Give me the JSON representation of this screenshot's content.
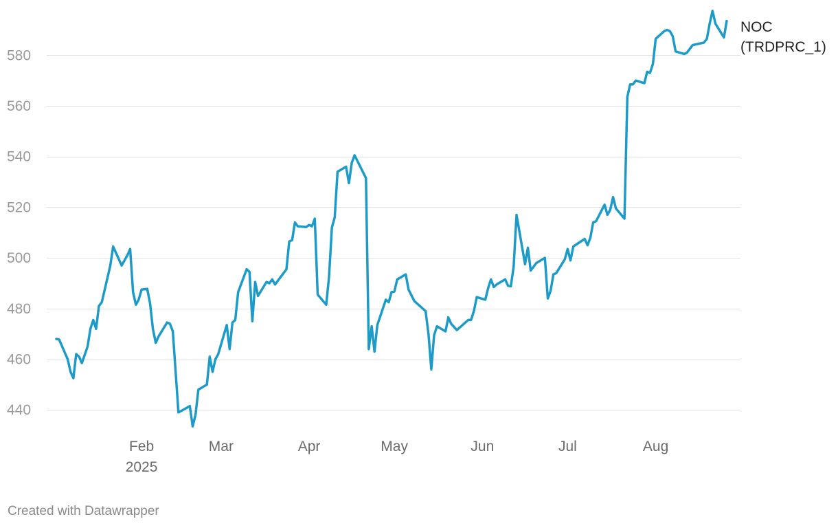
{
  "footer": "Created with Datawrapper",
  "chart_data": {
    "type": "line",
    "title": "",
    "xlabel": "",
    "ylabel": "",
    "ylim": [
      433,
      598
    ],
    "y_ticks": [
      440,
      460,
      480,
      500,
      520,
      540,
      560,
      580
    ],
    "x_range": [
      "2025-01-02",
      "2025-08-29"
    ],
    "x_ticks": [
      {
        "date": "2025-02-01",
        "label": "Feb",
        "sublabel": "2025"
      },
      {
        "date": "2025-03-01",
        "label": "Mar"
      },
      {
        "date": "2025-04-01",
        "label": "Apr"
      },
      {
        "date": "2025-05-01",
        "label": "May"
      },
      {
        "date": "2025-06-01",
        "label": "Jun"
      },
      {
        "date": "2025-07-01",
        "label": "Jul"
      },
      {
        "date": "2025-08-01",
        "label": "Aug"
      }
    ],
    "grid": true,
    "series": [
      {
        "name": "NOC (TRDPRC_1)",
        "label_lines": [
          "NOC",
          "(TRDPRC_1)"
        ],
        "color": "#1d9bc8",
        "points": [
          [
            "2025-01-02",
            468
          ],
          [
            "2025-01-03",
            467.8
          ],
          [
            "2025-01-06",
            460
          ],
          [
            "2025-01-07",
            455
          ],
          [
            "2025-01-08",
            452.5
          ],
          [
            "2025-01-09",
            462
          ],
          [
            "2025-01-10",
            461
          ],
          [
            "2025-01-11",
            458.5
          ],
          [
            "2025-01-13",
            465
          ],
          [
            "2025-01-14",
            472
          ],
          [
            "2025-01-15",
            475.5
          ],
          [
            "2025-01-16",
            472
          ],
          [
            "2025-01-17",
            481
          ],
          [
            "2025-01-18",
            482.5
          ],
          [
            "2025-01-21",
            497
          ],
          [
            "2025-01-22",
            504.5
          ],
          [
            "2025-01-23",
            502
          ],
          [
            "2025-01-25",
            497
          ],
          [
            "2025-01-27",
            501
          ],
          [
            "2025-01-28",
            503.5
          ],
          [
            "2025-01-29",
            486.5
          ],
          [
            "2025-01-30",
            481.5
          ],
          [
            "2025-01-31",
            483.5
          ],
          [
            "2025-02-01",
            487.5
          ],
          [
            "2025-02-03",
            487.8
          ],
          [
            "2025-02-04",
            482
          ],
          [
            "2025-02-05",
            472
          ],
          [
            "2025-02-06",
            466.5
          ],
          [
            "2025-02-07",
            469
          ],
          [
            "2025-02-10",
            474.5
          ],
          [
            "2025-02-11",
            474
          ],
          [
            "2025-02-12",
            471
          ],
          [
            "2025-02-13",
            455
          ],
          [
            "2025-02-14",
            439
          ],
          [
            "2025-02-18",
            441.5
          ],
          [
            "2025-02-19",
            433.5
          ],
          [
            "2025-02-20",
            438
          ],
          [
            "2025-02-21",
            448
          ],
          [
            "2025-02-24",
            450
          ],
          [
            "2025-02-25",
            461
          ],
          [
            "2025-02-26",
            455
          ],
          [
            "2025-02-27",
            460
          ],
          [
            "2025-02-28",
            462
          ],
          [
            "2025-03-03",
            473.5
          ],
          [
            "2025-03-04",
            464
          ],
          [
            "2025-03-05",
            474.5
          ],
          [
            "2025-03-06",
            475.5
          ],
          [
            "2025-03-07",
            486.5
          ],
          [
            "2025-03-10",
            495.5
          ],
          [
            "2025-03-11",
            494.5
          ],
          [
            "2025-03-12",
            475
          ],
          [
            "2025-03-13",
            490.5
          ],
          [
            "2025-03-14",
            485
          ],
          [
            "2025-03-17",
            490.5
          ],
          [
            "2025-03-18",
            490
          ],
          [
            "2025-03-19",
            491.5
          ],
          [
            "2025-03-20",
            489.5
          ],
          [
            "2025-03-24",
            495.5
          ],
          [
            "2025-03-25",
            506.5
          ],
          [
            "2025-03-26",
            507
          ],
          [
            "2025-03-27",
            514
          ],
          [
            "2025-03-28",
            512.5
          ],
          [
            "2025-03-31",
            512.2
          ],
          [
            "2025-04-01",
            513
          ],
          [
            "2025-04-02",
            512.5
          ],
          [
            "2025-04-03",
            515.5
          ],
          [
            "2025-04-04",
            485.5
          ],
          [
            "2025-04-07",
            481.5
          ],
          [
            "2025-04-08",
            492.5
          ],
          [
            "2025-04-09",
            512
          ],
          [
            "2025-04-10",
            516
          ],
          [
            "2025-04-11",
            534
          ],
          [
            "2025-04-14",
            536
          ],
          [
            "2025-04-15",
            529.5
          ],
          [
            "2025-04-16",
            537.5
          ],
          [
            "2025-04-17",
            540.5
          ],
          [
            "2025-04-21",
            531.5
          ],
          [
            "2025-04-22",
            464
          ],
          [
            "2025-04-23",
            473
          ],
          [
            "2025-04-24",
            463
          ],
          [
            "2025-04-25",
            473.5
          ],
          [
            "2025-04-28",
            483.5
          ],
          [
            "2025-04-29",
            482.5
          ],
          [
            "2025-04-30",
            486.5
          ],
          [
            "2025-05-01",
            486.7
          ],
          [
            "2025-05-02",
            491.5
          ],
          [
            "2025-05-05",
            493.5
          ],
          [
            "2025-05-06",
            487.5
          ],
          [
            "2025-05-08",
            483
          ],
          [
            "2025-05-12",
            479
          ],
          [
            "2025-05-13",
            470
          ],
          [
            "2025-05-14",
            456
          ],
          [
            "2025-05-15",
            469.5
          ],
          [
            "2025-05-16",
            473
          ],
          [
            "2025-05-19",
            471
          ],
          [
            "2025-05-20",
            476.5
          ],
          [
            "2025-05-21",
            474
          ],
          [
            "2025-05-23",
            471.5
          ],
          [
            "2025-05-27",
            475.5
          ],
          [
            "2025-05-28",
            475.5
          ],
          [
            "2025-05-29",
            479
          ],
          [
            "2025-05-30",
            484.5
          ],
          [
            "2025-06-02",
            483.5
          ],
          [
            "2025-06-03",
            488
          ],
          [
            "2025-06-04",
            491.5
          ],
          [
            "2025-06-05",
            488.5
          ],
          [
            "2025-06-06",
            489.5
          ],
          [
            "2025-06-09",
            491.5
          ],
          [
            "2025-06-10",
            489
          ],
          [
            "2025-06-11",
            488.8
          ],
          [
            "2025-06-12",
            496.5
          ],
          [
            "2025-06-13",
            517
          ],
          [
            "2025-06-16",
            497.5
          ],
          [
            "2025-06-17",
            504
          ],
          [
            "2025-06-18",
            495
          ],
          [
            "2025-06-20",
            498
          ],
          [
            "2025-06-23",
            500
          ],
          [
            "2025-06-24",
            484
          ],
          [
            "2025-06-25",
            487
          ],
          [
            "2025-06-26",
            493.5
          ],
          [
            "2025-06-27",
            494
          ],
          [
            "2025-06-30",
            499.5
          ],
          [
            "2025-07-01",
            503.5
          ],
          [
            "2025-07-02",
            499
          ],
          [
            "2025-07-03",
            504.5
          ],
          [
            "2025-07-07",
            507.5
          ],
          [
            "2025-07-08",
            505
          ],
          [
            "2025-07-09",
            508
          ],
          [
            "2025-07-10",
            514
          ],
          [
            "2025-07-11",
            514.5
          ],
          [
            "2025-07-14",
            521
          ],
          [
            "2025-07-15",
            517
          ],
          [
            "2025-07-16",
            519
          ],
          [
            "2025-07-17",
            524
          ],
          [
            "2025-07-18",
            519.5
          ],
          [
            "2025-07-21",
            515.5
          ],
          [
            "2025-07-22",
            563.5
          ],
          [
            "2025-07-23",
            568.5
          ],
          [
            "2025-07-24",
            568.5
          ],
          [
            "2025-07-25",
            570
          ],
          [
            "2025-07-28",
            569
          ],
          [
            "2025-07-29",
            573.5
          ],
          [
            "2025-07-30",
            573
          ],
          [
            "2025-07-31",
            576.5
          ],
          [
            "2025-08-01",
            586.5
          ],
          [
            "2025-08-04",
            589.5
          ],
          [
            "2025-08-05",
            590
          ],
          [
            "2025-08-06",
            589.5
          ],
          [
            "2025-08-07",
            587.5
          ],
          [
            "2025-08-08",
            581.5
          ],
          [
            "2025-08-11",
            580.5
          ],
          [
            "2025-08-12",
            581
          ],
          [
            "2025-08-14",
            584
          ],
          [
            "2025-08-18",
            585
          ],
          [
            "2025-08-19",
            586.5
          ],
          [
            "2025-08-20",
            592.5
          ],
          [
            "2025-08-21",
            597.5
          ],
          [
            "2025-08-22",
            592.5
          ],
          [
            "2025-08-25",
            587
          ],
          [
            "2025-08-26",
            593.5
          ]
        ]
      }
    ]
  }
}
